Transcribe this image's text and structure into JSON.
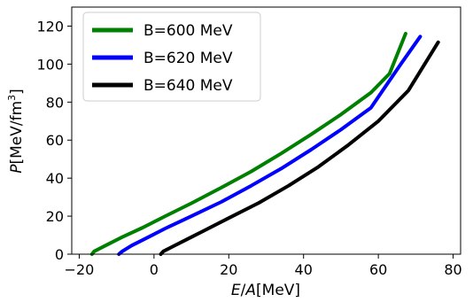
{
  "chart_data": {
    "type": "line",
    "xlabel": "E/A[MeV]",
    "ylabel": "P[MeV/fm3]",
    "xlim": [
      -22,
      82
    ],
    "ylim": [
      0,
      130
    ],
    "xticks": [
      -20,
      0,
      20,
      40,
      60,
      80
    ],
    "yticks": [
      0,
      20,
      40,
      60,
      80,
      100,
      120
    ],
    "grid": false,
    "legend_position": "top-left",
    "series": [
      {
        "name": "B=600 MeV",
        "color": "#008000",
        "x": [
          -16.6,
          -16.0,
          -13.0,
          -8.5,
          -3.0,
          3.0,
          10.0,
          18.0,
          26.0,
          34.0,
          42.0,
          50.0,
          58.0,
          63.0,
          67.3
        ],
        "y": [
          0,
          1.5,
          4.5,
          9.0,
          14.0,
          20.0,
          26.8,
          35.0,
          43.5,
          53.0,
          63.0,
          73.5,
          85.0,
          95.0,
          116.0
        ]
      },
      {
        "name": "B=620 MeV",
        "color": "#0000ff",
        "x": [
          -9.4,
          -8.5,
          -6.0,
          -2.0,
          3.0,
          10.0,
          18.0,
          26.0,
          34.0,
          42.0,
          50.0,
          58.0,
          66.0,
          71.2
        ],
        "y": [
          0,
          1.5,
          4.5,
          8.5,
          13.5,
          20.0,
          27.5,
          36.0,
          45.0,
          55.0,
          65.5,
          77.0,
          100.0,
          114.5
        ]
      },
      {
        "name": "B=640 MeV",
        "color": "#000000",
        "x": [
          1.8,
          2.5,
          5.0,
          9.0,
          14.0,
          20.0,
          28.0,
          36.0,
          44.0,
          52.0,
          60.0,
          68.0,
          76.0
        ],
        "y": [
          0,
          1.5,
          4.0,
          8.0,
          13.0,
          19.0,
          27.0,
          36.0,
          46.0,
          57.5,
          70.0,
          86.0,
          111.5
        ]
      }
    ]
  }
}
